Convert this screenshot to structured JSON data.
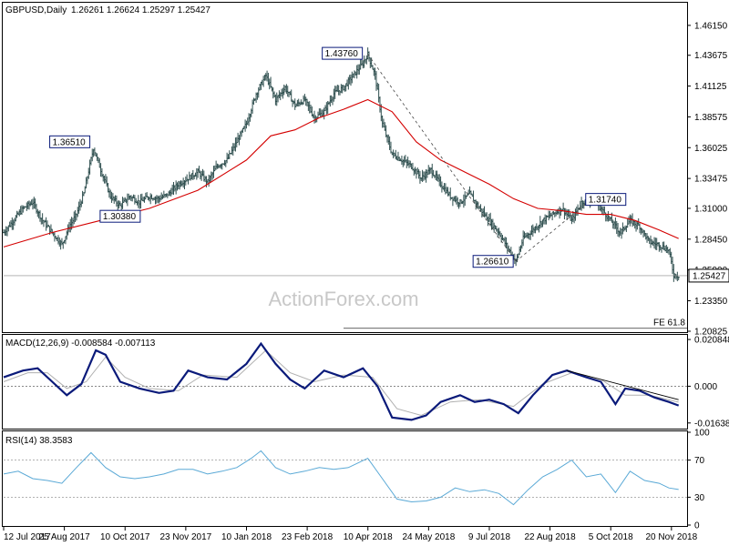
{
  "header": {
    "symbol": "GBPUSD,Daily",
    "ohlc": "1.26261 1.26624 1.25297 1.25427"
  },
  "watermark": "ActionForex.com",
  "colors": {
    "price": "#2f4f4f",
    "ma": "#d40000",
    "macd": "#0a1a7a",
    "signal": "#b0b0b0",
    "rsi": "#5aa9d6",
    "label_border": "#0a1a7a"
  },
  "chart_data": [
    {
      "type": "candlestick",
      "name": "price",
      "ylim": [
        1.20825,
        1.4795
      ],
      "y_ticks": [
        "1.46150",
        "1.43675",
        "1.41125",
        "1.38575",
        "1.36025",
        "1.33475",
        "1.31000",
        "1.28450",
        "1.25900",
        "1.23350",
        "1.20825"
      ],
      "current": "1.25427",
      "x_tick_labels": [
        "12 Jul 2017",
        "25 Aug 2017",
        "10 Oct 2017",
        "23 Nov 2017",
        "10 Jan 2018",
        "23 Feb 2018",
        "10 Apr 2018",
        "24 May 2018",
        "9 Jul 2018",
        "22 Aug 2018",
        "5 Oct 2018",
        "20 Nov 2018"
      ],
      "close_path": [
        [
          0,
          1.29
        ],
        [
          4,
          1.3
        ],
        [
          8,
          1.31
        ],
        [
          12,
          1.315
        ],
        [
          16,
          1.3
        ],
        [
          20,
          1.29
        ],
        [
          24,
          1.28
        ],
        [
          27,
          1.295
        ],
        [
          30,
          1.305
        ],
        [
          33,
          1.322
        ],
        [
          37,
          1.36
        ],
        [
          40,
          1.342
        ],
        [
          44,
          1.32
        ],
        [
          48,
          1.312
        ],
        [
          52,
          1.32
        ],
        [
          56,
          1.315
        ],
        [
          60,
          1.32
        ],
        [
          64,
          1.318
        ],
        [
          68,
          1.322
        ],
        [
          72,
          1.33
        ],
        [
          76,
          1.335
        ],
        [
          80,
          1.34
        ],
        [
          84,
          1.332
        ],
        [
          88,
          1.345
        ],
        [
          92,
          1.35
        ],
        [
          96,
          1.365
        ],
        [
          100,
          1.38
        ],
        [
          104,
          1.405
        ],
        [
          108,
          1.42
        ],
        [
          112,
          1.4
        ],
        [
          116,
          1.41
        ],
        [
          120,
          1.395
        ],
        [
          124,
          1.4
        ],
        [
          128,
          1.385
        ],
        [
          132,
          1.39
        ],
        [
          136,
          1.405
        ],
        [
          140,
          1.41
        ],
        [
          144,
          1.42
        ],
        [
          148,
          1.43
        ],
        [
          150,
          1.4376
        ],
        [
          153,
          1.42
        ],
        [
          156,
          1.38
        ],
        [
          160,
          1.355
        ],
        [
          164,
          1.35
        ],
        [
          168,
          1.345
        ],
        [
          172,
          1.335
        ],
        [
          176,
          1.342
        ],
        [
          180,
          1.33
        ],
        [
          184,
          1.32
        ],
        [
          188,
          1.315
        ],
        [
          192,
          1.322
        ],
        [
          196,
          1.31
        ],
        [
          200,
          1.3
        ],
        [
          204,
          1.29
        ],
        [
          208,
          1.2761
        ],
        [
          211,
          1.2661
        ],
        [
          214,
          1.285
        ],
        [
          218,
          1.292
        ],
        [
          222,
          1.3
        ],
        [
          226,
          1.305
        ],
        [
          230,
          1.31
        ],
        [
          234,
          1.3
        ],
        [
          238,
          1.315
        ],
        [
          242,
          1.3174
        ],
        [
          246,
          1.31
        ],
        [
          250,
          1.3
        ],
        [
          254,
          1.29
        ],
        [
          258,
          1.3
        ],
        [
          262,
          1.295
        ],
        [
          266,
          1.282
        ],
        [
          270,
          1.28
        ],
        [
          274,
          1.275
        ],
        [
          276,
          1.255
        ],
        [
          278,
          1.2543
        ]
      ],
      "ma_path": [
        [
          0,
          1.278
        ],
        [
          20,
          1.29
        ],
        [
          40,
          1.3
        ],
        [
          60,
          1.31
        ],
        [
          80,
          1.325
        ],
        [
          100,
          1.35
        ],
        [
          110,
          1.37
        ],
        [
          120,
          1.375
        ],
        [
          130,
          1.385
        ],
        [
          140,
          1.392
        ],
        [
          150,
          1.4
        ],
        [
          160,
          1.39
        ],
        [
          170,
          1.365
        ],
        [
          180,
          1.35
        ],
        [
          190,
          1.34
        ],
        [
          200,
          1.33
        ],
        [
          210,
          1.318
        ],
        [
          220,
          1.31
        ],
        [
          230,
          1.308
        ],
        [
          240,
          1.305
        ],
        [
          250,
          1.305
        ],
        [
          260,
          1.3
        ],
        [
          270,
          1.292
        ],
        [
          278,
          1.285
        ]
      ],
      "annotations": [
        {
          "label": "1.43760",
          "t": 150,
          "y": 1.4376
        },
        {
          "label": "1.36510",
          "t": 37,
          "y": 1.3651
        },
        {
          "label": "1.30380",
          "t": 45,
          "y": 1.3038
        },
        {
          "label": "1.26610",
          "t": 211,
          "y": 1.2661
        },
        {
          "label": "1.31740",
          "t": 242,
          "y": 1.3174
        }
      ],
      "fe_label": "FE 61.8",
      "fe_value": 1.2107
    },
    {
      "type": "line",
      "name": "MACD(12,26,9)",
      "title": "MACD(12,26,9) -0.008584 -0.007113",
      "y_ticks": [
        "0.020848",
        "0.000",
        "-0.016389"
      ],
      "ylim": [
        -0.0185,
        0.0225
      ],
      "macd_path": [
        [
          0,
          0.004
        ],
        [
          8,
          0.007
        ],
        [
          14,
          0.008
        ],
        [
          20,
          0.002
        ],
        [
          26,
          -0.004
        ],
        [
          32,
          0.001
        ],
        [
          38,
          0.016
        ],
        [
          42,
          0.014
        ],
        [
          48,
          0.002
        ],
        [
          56,
          -0.001
        ],
        [
          64,
          -0.003
        ],
        [
          70,
          -0.002
        ],
        [
          76,
          0.007
        ],
        [
          84,
          0.004
        ],
        [
          92,
          0.003
        ],
        [
          100,
          0.01
        ],
        [
          106,
          0.019
        ],
        [
          112,
          0.01
        ],
        [
          118,
          0.003
        ],
        [
          124,
          -0.001
        ],
        [
          132,
          0.007
        ],
        [
          140,
          0.004
        ],
        [
          148,
          0.008
        ],
        [
          154,
          0.0
        ],
        [
          160,
          -0.014
        ],
        [
          168,
          -0.015
        ],
        [
          174,
          -0.013
        ],
        [
          180,
          -0.007
        ],
        [
          188,
          -0.004
        ],
        [
          194,
          -0.007
        ],
        [
          200,
          -0.006
        ],
        [
          206,
          -0.008
        ],
        [
          212,
          -0.012
        ],
        [
          218,
          -0.004
        ],
        [
          226,
          0.005
        ],
        [
          232,
          0.007
        ],
        [
          240,
          0.004
        ],
        [
          246,
          0.002
        ],
        [
          252,
          -0.008
        ],
        [
          256,
          -0.001
        ],
        [
          262,
          -0.002
        ],
        [
          268,
          -0.005
        ],
        [
          274,
          -0.007
        ],
        [
          278,
          -0.0086
        ]
      ],
      "signal_path": [
        [
          0,
          0.002
        ],
        [
          10,
          0.006
        ],
        [
          18,
          0.006
        ],
        [
          26,
          -0.001
        ],
        [
          34,
          0.002
        ],
        [
          42,
          0.013
        ],
        [
          50,
          0.004
        ],
        [
          60,
          -0.001
        ],
        [
          72,
          -0.002
        ],
        [
          82,
          0.005
        ],
        [
          96,
          0.004
        ],
        [
          108,
          0.016
        ],
        [
          118,
          0.006
        ],
        [
          128,
          0.002
        ],
        [
          140,
          0.005
        ],
        [
          152,
          0.004
        ],
        [
          162,
          -0.01
        ],
        [
          172,
          -0.013
        ],
        [
          184,
          -0.007
        ],
        [
          196,
          -0.006
        ],
        [
          210,
          -0.009
        ],
        [
          222,
          0.001
        ],
        [
          234,
          0.006
        ],
        [
          246,
          0.003
        ],
        [
          256,
          -0.004
        ],
        [
          266,
          -0.004
        ],
        [
          278,
          -0.0071
        ]
      ],
      "trendline": [
        [
          232,
          0.007
        ],
        [
          278,
          -0.006
        ]
      ]
    },
    {
      "type": "line",
      "name": "RSI(14)",
      "title": "RSI(14) 38.3583",
      "y_ticks": [
        "100",
        "70",
        "30",
        "0"
      ],
      "ylim": [
        0,
        100
      ],
      "levels": [
        70,
        30
      ],
      "rsi_path": [
        [
          0,
          55
        ],
        [
          6,
          58
        ],
        [
          12,
          50
        ],
        [
          18,
          48
        ],
        [
          24,
          45
        ],
        [
          30,
          62
        ],
        [
          36,
          78
        ],
        [
          42,
          62
        ],
        [
          48,
          52
        ],
        [
          54,
          50
        ],
        [
          60,
          52
        ],
        [
          66,
          55
        ],
        [
          72,
          60
        ],
        [
          78,
          60
        ],
        [
          84,
          55
        ],
        [
          90,
          58
        ],
        [
          96,
          62
        ],
        [
          102,
          72
        ],
        [
          106,
          80
        ],
        [
          112,
          62
        ],
        [
          118,
          55
        ],
        [
          124,
          58
        ],
        [
          130,
          62
        ],
        [
          136,
          60
        ],
        [
          142,
          62
        ],
        [
          150,
          72
        ],
        [
          156,
          50
        ],
        [
          162,
          28
        ],
        [
          168,
          25
        ],
        [
          174,
          26
        ],
        [
          180,
          30
        ],
        [
          186,
          40
        ],
        [
          192,
          36
        ],
        [
          198,
          38
        ],
        [
          204,
          34
        ],
        [
          210,
          22
        ],
        [
          216,
          38
        ],
        [
          222,
          52
        ],
        [
          228,
          60
        ],
        [
          234,
          70
        ],
        [
          240,
          52
        ],
        [
          246,
          55
        ],
        [
          252,
          35
        ],
        [
          258,
          58
        ],
        [
          264,
          48
        ],
        [
          270,
          45
        ],
        [
          274,
          40
        ],
        [
          278,
          38.36
        ]
      ]
    }
  ]
}
